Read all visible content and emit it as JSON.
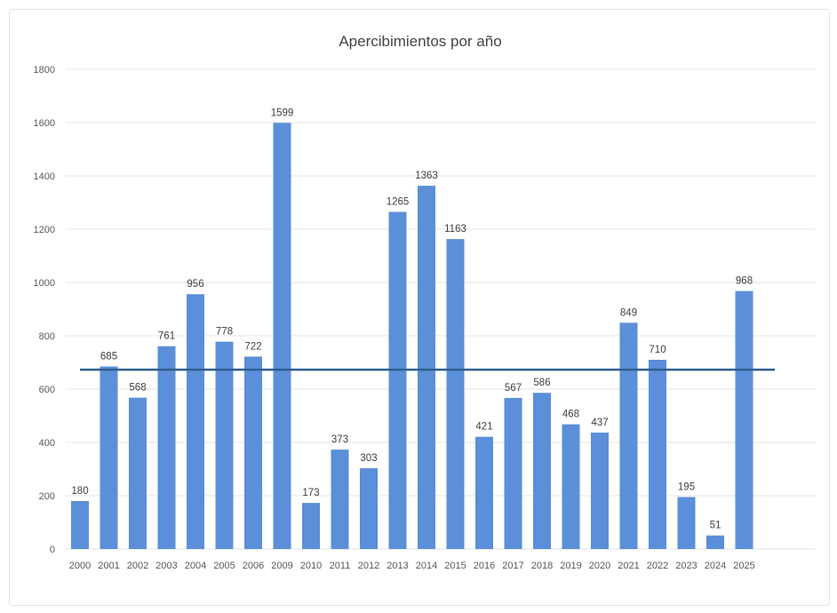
{
  "chart_data": {
    "type": "bar",
    "title": "Apercibimientos por año",
    "categories": [
      "2000",
      "2001",
      "2002",
      "2003",
      "2004",
      "2005",
      "2006",
      "2009",
      "2010",
      "2011",
      "2012",
      "2013",
      "2014",
      "2015",
      "2016",
      "2017",
      "2018",
      "2019",
      "2020",
      "2021",
      "2022",
      "2023",
      "2024",
      "2025"
    ],
    "values": [
      180,
      685,
      568,
      761,
      956,
      778,
      722,
      1599,
      173,
      373,
      303,
      1265,
      1363,
      1163,
      421,
      567,
      586,
      468,
      437,
      849,
      710,
      195,
      51,
      968
    ],
    "data_labels": [
      "180",
      "685",
      "568",
      "761",
      "956",
      "778",
      "722",
      "1599",
      "173",
      "373",
      "303",
      "1265",
      "1363",
      "1163",
      "421",
      "567",
      "586",
      "468",
      "437",
      "849",
      "710",
      "195",
      "51",
      "968"
    ],
    "reference_line": 673,
    "ylim": [
      0,
      1800
    ],
    "yticks": [
      "0",
      "200",
      "400",
      "600",
      "800",
      "1000",
      "1200",
      "1400",
      "1600",
      "1800"
    ],
    "xlabel": "",
    "ylabel": "",
    "grid": true,
    "colors": {
      "bar": "#5b8fd9",
      "reference_line": "#2f5f8f",
      "grid": "#e4e4e4"
    }
  }
}
